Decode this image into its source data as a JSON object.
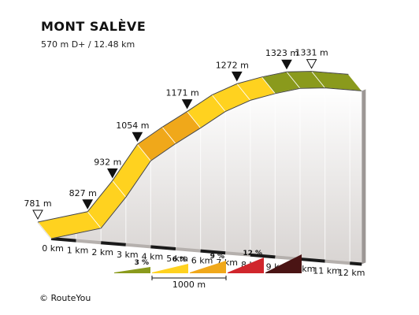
{
  "header": {
    "title": "MONT SALÈVE",
    "subtitle": "570 m D+ / 12.48 km"
  },
  "footer": {
    "copyright": "© RouteYou"
  },
  "colors": {
    "ground_top": "#ffffff",
    "ground_bottom": "#d8d4d2",
    "base_edge": "#1a1a1a",
    "outline": "#333333"
  },
  "chart_data": {
    "type": "area",
    "title": "MONT SALÈVE",
    "subtitle": "570 m D+ / 12.48 km",
    "xlabel": "",
    "ylabel": "",
    "x_unit": "km",
    "x_ticks": [
      "0 km",
      "1 km",
      "2 km",
      "3 km",
      "4 km",
      "5 km",
      "6 km",
      "7 km",
      "8 km",
      "9 km",
      "10 km",
      "11 km",
      "12 km"
    ],
    "total_distance_km": 12.48,
    "elevation_gain_m": 570,
    "ylim": [
      781,
      1331
    ],
    "x": [
      0,
      2,
      3,
      4,
      5,
      6,
      7,
      8,
      9,
      10,
      11,
      12.48
    ],
    "y": [
      781,
      827,
      932,
      1054,
      1115,
      1171,
      1230,
      1272,
      1300,
      1323,
      1331,
      1331
    ],
    "segment_colors": [
      "#ffd21f",
      "#ffd21f",
      "#ffd21f",
      "#f0a81a",
      "#f0a81a",
      "#ffd21f",
      "#ffd21f",
      "#ffd21f",
      "#8a9a1c",
      "#8a9a1c",
      "#8a9a1c"
    ],
    "markers": [
      {
        "km": 0,
        "elevation": 781,
        "label": "781 m",
        "style": "open"
      },
      {
        "km": 2,
        "elevation": 827,
        "label": "827 m",
        "style": "filled"
      },
      {
        "km": 3,
        "elevation": 932,
        "label": "932 m",
        "style": "filled"
      },
      {
        "km": 4,
        "elevation": 1054,
        "label": "1054 m",
        "style": "filled"
      },
      {
        "km": 6,
        "elevation": 1171,
        "label": "1171 m",
        "style": "filled"
      },
      {
        "km": 8,
        "elevation": 1272,
        "label": "1272 m",
        "style": "filled"
      },
      {
        "km": 10,
        "elevation": 1323,
        "label": "1323 m",
        "style": "filled"
      },
      {
        "km": 11,
        "elevation": 1331,
        "label": "1331 m",
        "style": "open"
      }
    ],
    "legend": {
      "gradients": [
        {
          "label": "3 %",
          "color": "#8a9a1c",
          "height": 1
        },
        {
          "label": "6 %",
          "color": "#ffd21f",
          "height": 2
        },
        {
          "label": "9 %",
          "color": "#f0a81a",
          "height": 3
        },
        {
          "label": "12 %",
          "color": "#d0262c",
          "height": 4
        },
        {
          "label": "",
          "color": "#4a1414",
          "height": 5
        }
      ],
      "scale_label": "1000 m"
    }
  }
}
